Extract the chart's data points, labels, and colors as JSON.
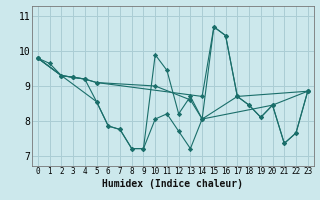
{
  "xlabel": "Humidex (Indice chaleur)",
  "bg_color": "#cce8ec",
  "grid_color": "#aacdd4",
  "line_color": "#1a6e6a",
  "xlim": [
    -0.5,
    23.5
  ],
  "ylim": [
    6.7,
    11.3
  ],
  "xticks": [
    0,
    1,
    2,
    3,
    4,
    5,
    6,
    7,
    8,
    9,
    10,
    11,
    12,
    13,
    14,
    15,
    16,
    17,
    18,
    19,
    20,
    21,
    22,
    23
  ],
  "yticks": [
    7,
    8,
    9,
    10,
    11
  ],
  "series": [
    {
      "x": [
        0,
        1,
        2,
        3,
        4,
        5,
        6,
        7,
        8,
        9,
        10,
        11,
        12,
        13,
        14,
        15,
        16,
        17,
        18,
        19,
        20,
        21,
        22,
        23
      ],
      "y": [
        9.8,
        9.65,
        9.3,
        9.25,
        9.2,
        8.55,
        7.85,
        7.75,
        7.2,
        7.2,
        9.9,
        9.45,
        8.2,
        8.7,
        8.05,
        10.7,
        10.45,
        8.7,
        8.45,
        8.1,
        8.45,
        7.35,
        7.65,
        8.85
      ]
    },
    {
      "x": [
        0,
        2,
        3,
        4,
        5,
        14,
        15,
        16,
        17,
        23
      ],
      "y": [
        9.8,
        9.3,
        9.25,
        9.2,
        9.1,
        8.7,
        10.7,
        10.45,
        8.7,
        8.85
      ]
    },
    {
      "x": [
        0,
        2,
        3,
        4,
        5,
        10,
        13,
        14,
        17,
        18,
        19,
        20,
        23
      ],
      "y": [
        9.8,
        9.3,
        9.25,
        9.2,
        9.1,
        9.0,
        8.6,
        8.05,
        8.7,
        8.45,
        8.1,
        8.45,
        8.85
      ]
    },
    {
      "x": [
        0,
        5,
        6,
        7,
        8,
        9,
        10,
        11,
        12,
        13,
        14,
        20,
        21,
        22,
        23
      ],
      "y": [
        9.8,
        8.55,
        7.85,
        7.75,
        7.2,
        7.2,
        8.05,
        8.2,
        7.7,
        7.2,
        8.05,
        8.45,
        7.35,
        7.65,
        8.85
      ]
    }
  ]
}
